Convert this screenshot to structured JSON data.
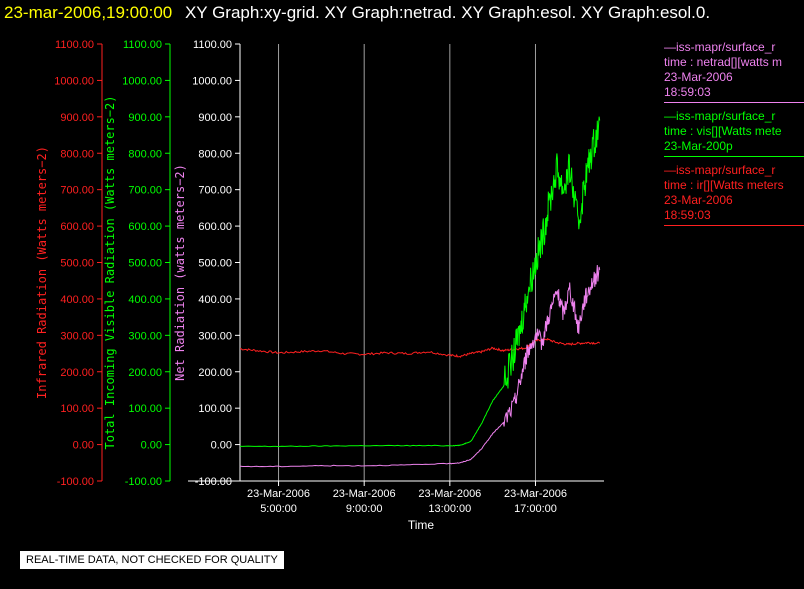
{
  "header": {
    "date": "23-mar-2006,19:00:00",
    "titles": "XY Graph:xy-grid.  XY Graph:netrad.  XY Graph:esol.  XY Graph:esol.0."
  },
  "colors": {
    "ir": "#ff2020",
    "vis": "#00ff00",
    "net": "#ee82ee",
    "axis": "#ffffff",
    "grid": "#a0a0a0"
  },
  "chart_data": {
    "type": "line",
    "xlabel": "Time",
    "x_ticks": [
      {
        "date": "23-Mar-2006",
        "time": "5:00:00",
        "hour": 5
      },
      {
        "date": "23-Mar-2006",
        "time": "9:00:00",
        "hour": 9
      },
      {
        "date": "23-Mar-2006",
        "time": "13:00:00",
        "hour": 13
      },
      {
        "date": "23-Mar-2006",
        "time": "17:00:00",
        "hour": 17
      }
    ],
    "xlim_hours": [
      3.2,
      20.2
    ],
    "ylim": [
      -100,
      1100
    ],
    "y_ticks": [
      "-100.00",
      "0.00",
      "100.00",
      "200.00",
      "300.00",
      "400.00",
      "500.00",
      "600.00",
      "700.00",
      "800.00",
      "900.00",
      "1000.00",
      "1100.00"
    ],
    "y_axes": [
      {
        "series": "ir",
        "label": "Infrared Radiation (Watts meters−2)"
      },
      {
        "series": "vis",
        "label": "Total Incoming Visible Radiation (Watts meters−2)"
      },
      {
        "series": "net",
        "label": "Net Radiation (watts meters−2)"
      }
    ],
    "series": [
      {
        "key": "ir",
        "hours": [
          3.2,
          4.0,
          5.0,
          6.0,
          7.0,
          8.0,
          9.0,
          10.0,
          11.0,
          12.0,
          13.0,
          13.5,
          14.0,
          14.5,
          15.0,
          15.5,
          16.0,
          16.5,
          17.0,
          17.5,
          18.0,
          18.5,
          19.0,
          19.5,
          20.0
        ],
        "values": [
          263,
          258,
          252,
          255,
          258,
          250,
          248,
          252,
          250,
          255,
          245,
          243,
          250,
          255,
          265,
          258,
          262,
          265,
          285,
          290,
          280,
          275,
          278,
          280,
          278
        ]
      },
      {
        "key": "vis",
        "hours": [
          3.2,
          5.0,
          7.0,
          9.0,
          11.0,
          13.0,
          13.5,
          14.0,
          14.5,
          15.0,
          15.5,
          16.0,
          16.3,
          16.6,
          17.0,
          17.3,
          17.6,
          18.0,
          18.3,
          18.6,
          19.0,
          19.3,
          19.6,
          20.0
        ],
        "values": [
          -5,
          -5,
          -4,
          -3,
          -3,
          -3,
          -2,
          10,
          60,
          120,
          160,
          250,
          320,
          410,
          500,
          560,
          650,
          760,
          700,
          760,
          600,
          720,
          800,
          890
        ]
      },
      {
        "key": "net",
        "hours": [
          3.2,
          5.0,
          7.0,
          9.0,
          11.0,
          13.0,
          13.5,
          14.0,
          14.5,
          15.0,
          15.5,
          16.0,
          16.3,
          16.6,
          17.0,
          17.3,
          17.6,
          18.0,
          18.3,
          18.6,
          19.0,
          19.3,
          19.6,
          20.0
        ],
        "values": [
          -60,
          -60,
          -58,
          -58,
          -56,
          -52,
          -50,
          -40,
          -10,
          30,
          60,
          110,
          180,
          250,
          300,
          280,
          350,
          420,
          360,
          430,
          320,
          400,
          440,
          480
        ]
      }
    ]
  },
  "legend": [
    {
      "key": "net",
      "lines": [
        "—iss-mapr/surface_r",
        "time : netrad[][watts m",
        "23-Mar-2006",
        "18:59:03"
      ]
    },
    {
      "key": "vis",
      "lines": [
        "—iss-mapr/surface_r",
        "time : vis[][Watts mete",
        "23-Mar-200p"
      ]
    },
    {
      "key": "ir",
      "lines": [
        "—iss-mapr/surface_r",
        "time : ir[][Watts meters",
        "23-Mar-2006",
        "18:59:03"
      ]
    }
  ],
  "notice": "REAL-TIME DATA, NOT CHECKED FOR QUALITY"
}
